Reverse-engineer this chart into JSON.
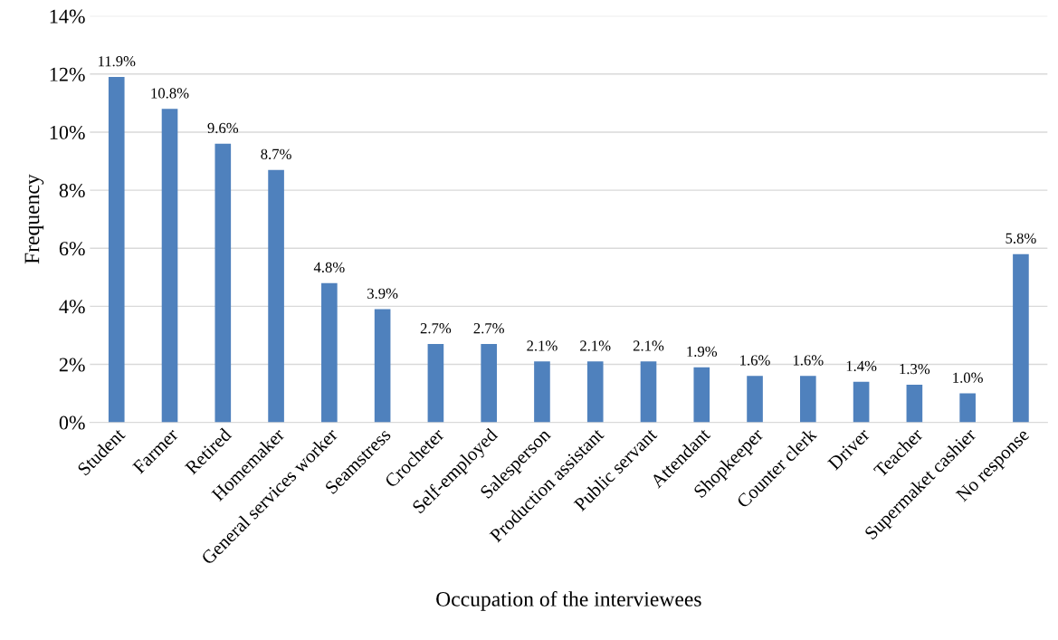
{
  "chart_data": {
    "type": "bar",
    "xlabel": "Occupation of the interviewees",
    "ylabel": "Frequency",
    "categories": [
      "Student",
      "Farmer",
      "Retired",
      "Homemaker",
      "General services worker",
      "Seamstress",
      "Crocheter",
      "Self-employed",
      "Salesperson",
      "Production assistant",
      "Public servant",
      "Attendant",
      "Shopkeeper",
      "Counter clerk",
      "Driver",
      "Teacher",
      "Supermaket cashier",
      "No response"
    ],
    "values": [
      11.9,
      10.8,
      9.6,
      8.7,
      4.8,
      3.9,
      2.7,
      2.7,
      2.1,
      2.1,
      2.1,
      1.9,
      1.6,
      1.6,
      1.4,
      1.3,
      1.0,
      5.8
    ],
    "value_labels": [
      "11.9%",
      "10.8%",
      "9.6%",
      "8.7%",
      "4.8%",
      "3.9%",
      "2.7%",
      "2.7%",
      "2.1%",
      "2.1%",
      "2.1%",
      "1.9%",
      "1.6%",
      "1.6%",
      "1.4%",
      "1.3%",
      "1.0%",
      "5.8%"
    ],
    "color": "#4f81bd",
    "ylim": [
      0,
      14
    ],
    "yticks": [
      {
        "value": 0,
        "label": "0%"
      },
      {
        "value": 2,
        "label": "2%"
      },
      {
        "value": 4,
        "label": "4%"
      },
      {
        "value": 6,
        "label": "6%"
      },
      {
        "value": 8,
        "label": "8%"
      },
      {
        "value": 10,
        "label": "10%"
      },
      {
        "value": 12,
        "label": "12%"
      },
      {
        "value": 14,
        "label": "14%"
      }
    ],
    "grid": "y",
    "legend": false
  }
}
